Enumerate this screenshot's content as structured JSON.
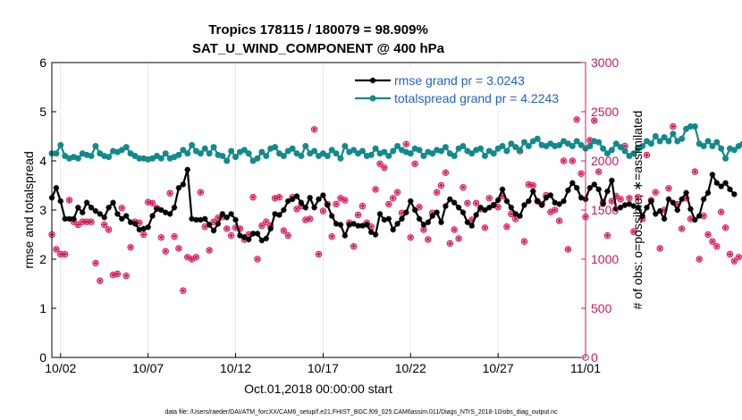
{
  "colors": {
    "rmse": "#000000",
    "spread": "#138a8a",
    "obs": "#d6145a",
    "legend_text": "#1f5fd6",
    "right_axis": "#d6145a"
  },
  "chart_data": {
    "type": "line",
    "title": "Tropics 178115 / 180079 = 98.909%",
    "subtitle": "SAT_U_WIND_COMPONENT @ 400 hPa",
    "xlabel": "Oct.01,2018 00:00:00 start",
    "ylabel": "rmse and totalspread",
    "y2label": "# of obs: o=possible; ∗=assimilated",
    "xlim": [
      1.5,
      32.0
    ],
    "ylim": [
      0,
      6
    ],
    "y2lim": [
      0,
      3000
    ],
    "xticks": [
      {
        "x": 2,
        "label": "10/02"
      },
      {
        "x": 7,
        "label": "10/07"
      },
      {
        "x": 12,
        "label": "10/12"
      },
      {
        "x": 17,
        "label": "10/17"
      },
      {
        "x": 22,
        "label": "10/22"
      },
      {
        "x": 27,
        "label": "10/27"
      },
      {
        "x": 32,
        "label": "11/01"
      }
    ],
    "yticks": [
      "0",
      "1",
      "2",
      "3",
      "4",
      "5",
      "6"
    ],
    "y2ticks": [
      "0",
      "500",
      "1000",
      "1500",
      "2000",
      "2500",
      "3000"
    ],
    "legend": [
      {
        "name": "rmse grand pr = 3.0243",
        "series": "rmse"
      },
      {
        "name": "totalspread grand pr = 4.2243",
        "series": "totalspread"
      }
    ],
    "footnote": "data file: /Users/raeder/DAI/ATM_forcXX/CAM6_setup/f.e21.FHIST_BGC.f09_025.CAM6assim.011/Diags_NTrS_2018-10/obs_diag_output.nc",
    "series": [
      {
        "name": "rmse",
        "x0": 1.5,
        "dx": 0.25,
        "values": [
          3.25,
          3.45,
          3.18,
          2.82,
          2.82,
          2.82,
          3.05,
          2.95,
          3.15,
          3.05,
          2.98,
          2.92,
          2.85,
          3.05,
          3.15,
          2.92,
          2.82,
          2.88,
          2.75,
          2.72,
          2.6,
          2.62,
          2.65,
          2.88,
          3.02,
          3.0,
          2.95,
          2.92,
          3.05,
          3.45,
          3.52,
          3.82,
          2.82,
          2.8,
          2.8,
          2.82,
          2.7,
          2.58,
          2.72,
          2.92,
          2.85,
          2.92,
          2.8,
          2.48,
          2.45,
          2.4,
          2.52,
          2.52,
          2.38,
          2.42,
          2.62,
          2.92,
          2.9,
          3.0,
          3.18,
          3.22,
          3.28,
          3.15,
          3.05,
          3.25,
          3.05,
          3.22,
          3.3,
          3.1,
          2.88,
          2.72,
          2.7,
          2.48,
          2.7,
          2.72,
          2.68,
          2.68,
          2.7,
          2.55,
          2.5,
          2.92,
          2.8,
          2.82,
          2.6,
          2.72,
          2.82,
          2.95,
          3.18,
          3.0,
          2.82,
          2.7,
          2.75,
          2.88,
          2.95,
          2.75,
          3.08,
          3.22,
          3.15,
          3.05,
          2.95,
          2.75,
          2.68,
          2.9,
          3.05,
          3.0,
          3.05,
          3.1,
          3.2,
          3.42,
          3.18,
          3.05,
          2.92,
          2.88,
          3.1,
          3.18,
          3.38,
          3.18,
          3.1,
          3.25,
          3.3,
          3.15,
          3.12,
          3.18,
          3.4,
          3.55,
          3.45,
          3.25,
          3.22,
          3.45,
          3.52,
          3.42,
          3.12,
          3.38,
          3.6,
          3.02,
          3.05,
          3.1,
          3.12,
          3.08,
          3.05,
          2.88,
          3.05,
          3.18,
          2.92,
          2.98,
          2.82,
          3.22,
          3.15,
          3.0,
          3.22,
          3.35,
          3.02,
          2.8,
          2.88,
          3.22,
          3.35,
          3.72,
          3.55,
          3.48,
          3.55,
          3.42,
          3.32
        ]
      },
      {
        "name": "totalspread",
        "x0": 1.5,
        "dx": 0.25,
        "values": [
          4.15,
          4.15,
          4.32,
          4.1,
          4.05,
          4.08,
          4.05,
          4.15,
          4.12,
          4.1,
          4.3,
          4.15,
          4.1,
          4.08,
          4.2,
          4.18,
          4.22,
          4.28,
          4.15,
          4.1,
          4.05,
          4.05,
          4.03,
          4.05,
          4.1,
          4.05,
          4.15,
          4.05,
          4.08,
          4.12,
          4.22,
          4.15,
          4.32,
          4.2,
          4.15,
          4.25,
          4.15,
          4.28,
          4.12,
          4.1,
          4.0,
          4.2,
          4.08,
          4.18,
          4.22,
          4.15,
          4.0,
          4.05,
          4.18,
          4.1,
          4.25,
          4.28,
          4.15,
          4.1,
          4.2,
          4.25,
          4.15,
          4.1,
          4.3,
          4.15,
          4.2,
          4.1,
          4.15,
          4.1,
          4.22,
          4.15,
          4.05,
          4.3,
          4.18,
          4.22,
          4.15,
          4.2,
          4.1,
          4.12,
          4.25,
          4.15,
          4.18,
          4.1,
          4.2,
          4.3,
          4.22,
          4.18,
          4.15,
          4.25,
          4.22,
          4.1,
          4.18,
          4.15,
          4.22,
          4.2,
          4.28,
          4.15,
          4.1,
          4.25,
          4.3,
          4.2,
          4.15,
          4.22,
          4.25,
          4.1,
          4.2,
          4.15,
          4.25,
          4.3,
          4.2,
          4.35,
          4.28,
          4.22,
          4.38,
          4.3,
          4.4,
          4.45,
          4.32,
          4.3,
          4.35,
          4.3,
          4.32,
          4.4,
          4.35,
          4.3,
          4.4,
          4.32,
          4.25,
          4.3,
          4.4,
          4.38,
          4.25,
          4.15,
          4.22,
          4.35,
          4.28,
          4.2,
          4.1,
          4.15,
          4.25,
          4.3,
          4.4,
          4.35,
          4.5,
          4.4,
          4.48,
          4.4,
          4.55,
          4.4,
          4.45,
          4.65,
          4.7,
          4.7,
          4.35,
          4.3,
          4.4,
          4.3,
          4.38,
          4.25,
          4.05,
          4.25,
          4.22,
          4.3,
          4.35,
          4.4,
          4.38
        ]
      },
      {
        "name": "obs",
        "x0": 1.5,
        "dx": 0.25,
        "values": [
          1250,
          1100,
          1050,
          1050,
          1600,
          1380,
          1350,
          1380,
          1380,
          1380,
          960,
          780,
          1350,
          1300,
          840,
          850,
          1520,
          830,
          1120,
          1380,
          1370,
          1250,
          1580,
          1570,
          1520,
          1220,
          1080,
          1670,
          1230,
          1110,
          680,
          1020,
          1000,
          1020,
          1680,
          1330,
          1090,
          1380,
          1420,
          1430,
          1310,
          1240,
          1320,
          1310,
          1200,
          1250,
          1630,
          1000,
          1340,
          1380,
          1340,
          1620,
          1630,
          1290,
          1240,
          1630,
          1510,
          1540,
          1400,
          1410,
          2320,
          1050,
          1490,
          1560,
          1230,
          1560,
          1620,
          1600,
          1370,
          1130,
          1450,
          1540,
          1370,
          1330,
          1710,
          1970,
          1930,
          1560,
          1620,
          1680,
          1470,
          2170,
          1220,
          1970,
          1530,
          1300,
          1200,
          1470,
          1680,
          1750,
          1880,
          1160,
          1300,
          1210,
          1730,
          1570,
          1400,
          1570,
          1510,
          1320,
          1620,
          1550,
          1530,
          1640,
          1330,
          1460,
          1410,
          2100,
          1180,
          1760,
          1750,
          1590,
          1560,
          1650,
          1480,
          1500,
          1390,
          2000,
          1100,
          2000,
          2420,
          1870,
          1430,
          2210,
          2410,
          1890,
          1580,
          1240,
          1590,
          1640,
          1610,
          2150,
          1620,
          1280,
          1630,
          1410,
          2060,
          1600,
          1680,
          1110,
          1500,
          1720,
          2350,
          1560,
          1310,
          1620,
          1410,
          1890,
          1000,
          1440,
          1250,
          1180,
          1130,
          1480,
          1320,
          1050,
          980,
          1020
        ]
      }
    ]
  }
}
